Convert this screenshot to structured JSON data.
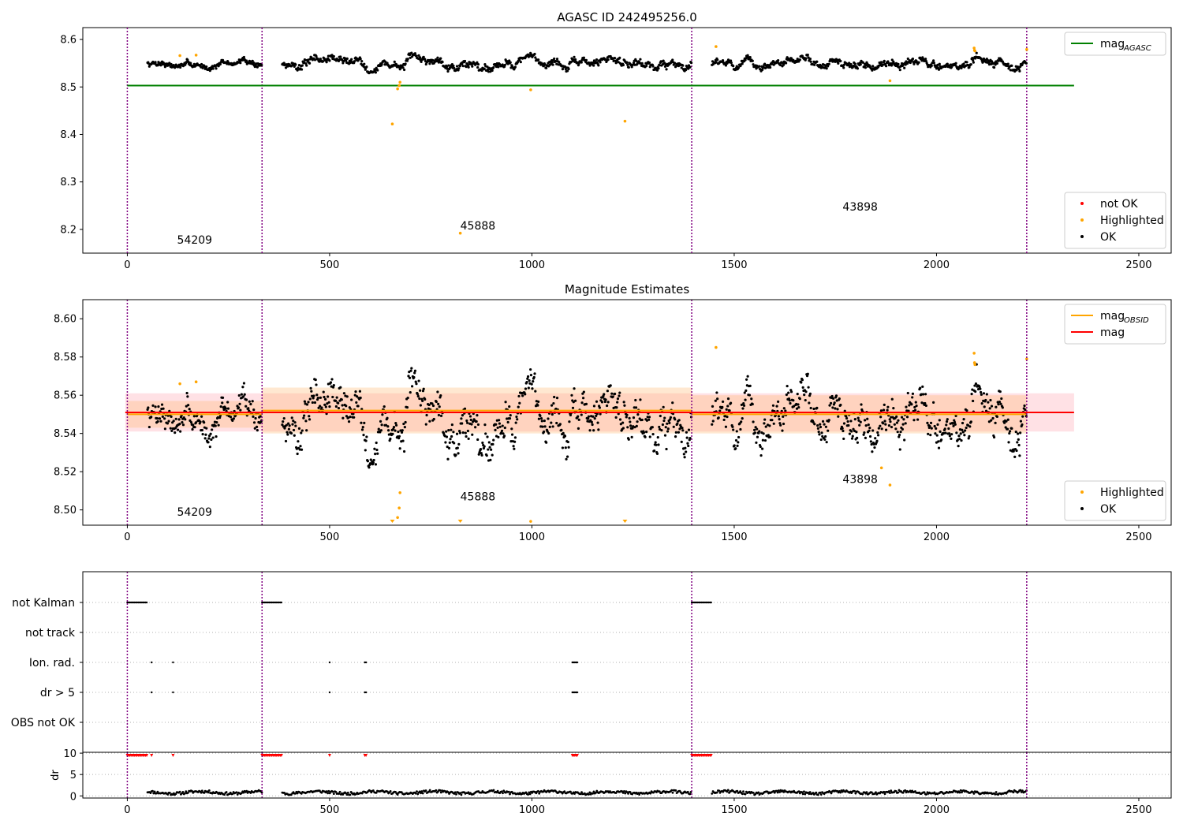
{
  "figure": {
    "title_top": "AGASC ID 242495256.0",
    "title_mid": "Magnitude Estimates"
  },
  "chart_data": [
    {
      "type": "scatter",
      "title": "AGASC ID 242495256.0",
      "xlabel": "",
      "ylabel": "",
      "xlim": [
        -110,
        2580
      ],
      "ylim": [
        8.15,
        8.625
      ],
      "xticks": [
        0,
        500,
        1000,
        1500,
        2000,
        2500
      ],
      "yticks": [
        8.2,
        8.3,
        8.4,
        8.5,
        8.6
      ],
      "grid": false,
      "legend": {
        "upper": {
          "placement": "upper right",
          "entries": [
            {
              "label": "mag",
              "subscript": "AGASC",
              "color": "#008000",
              "kind": "line"
            }
          ]
        },
        "lower": {
          "placement": "lower right",
          "entries": [
            {
              "label": "not OK",
              "color": "#ff0000",
              "kind": "marker"
            },
            {
              "label": "Highlighted",
              "color": "#ffa500",
              "kind": "marker"
            },
            {
              "label": "OK",
              "color": "#000000",
              "kind": "marker"
            }
          ]
        }
      },
      "reference_lines": [
        {
          "name": "mag_AGASC",
          "y": 8.503,
          "x_range": [
            0,
            2340
          ],
          "color": "#008000"
        }
      ],
      "observation_boundaries": [
        0,
        333,
        1395,
        2223
      ],
      "observation_labels": [
        {
          "text": "54209",
          "x": 123,
          "y": 8.17
        },
        {
          "text": "45888",
          "x": 823,
          "y": 8.2
        },
        {
          "text": "43898",
          "x": 1768,
          "y": 8.24
        }
      ],
      "segments": [
        {
          "x_range": [
            50,
            333
          ],
          "mean": 8.548,
          "spread": 0.012
        },
        {
          "x_range": [
            383,
            1395
          ],
          "mean": 8.552,
          "spread": 0.018
        },
        {
          "x_range": [
            1445,
            2223
          ],
          "mean": 8.549,
          "spread": 0.016
        }
      ],
      "highlighted_points": [
        {
          "x": 130,
          "y": 8.566
        },
        {
          "x": 170,
          "y": 8.567
        },
        {
          "x": 655,
          "y": 8.422
        },
        {
          "x": 668,
          "y": 8.496
        },
        {
          "x": 672,
          "y": 8.503
        },
        {
          "x": 674,
          "y": 8.51
        },
        {
          "x": 823,
          "y": 8.192
        },
        {
          "x": 997,
          "y": 8.494
        },
        {
          "x": 1230,
          "y": 8.428
        },
        {
          "x": 1455,
          "y": 8.585
        },
        {
          "x": 1885,
          "y": 8.513
        },
        {
          "x": 2093,
          "y": 8.582
        },
        {
          "x": 2094,
          "y": 8.577
        },
        {
          "x": 2095,
          "y": 8.576
        },
        {
          "x": 2223,
          "y": 8.579
        }
      ]
    },
    {
      "type": "scatter",
      "title": "Magnitude Estimates",
      "xlabel": "",
      "ylabel": "",
      "xlim": [
        -110,
        2580
      ],
      "ylim": [
        8.492,
        8.61
      ],
      "xticks": [
        0,
        500,
        1000,
        1500,
        2000,
        2500
      ],
      "yticks": [
        8.5,
        8.52,
        8.54,
        8.56,
        8.58,
        8.6
      ],
      "grid": false,
      "legend": {
        "upper": {
          "placement": "upper right",
          "entries": [
            {
              "label": "mag",
              "subscript": "OBSID",
              "color": "#ffa500",
              "kind": "line"
            },
            {
              "label": "mag",
              "subscript": "",
              "color": "#ff0000",
              "kind": "line"
            }
          ]
        },
        "lower": {
          "placement": "lower right",
          "entries": [
            {
              "label": "Highlighted",
              "color": "#ffa500",
              "kind": "marker"
            },
            {
              "label": "OK",
              "color": "#000000",
              "kind": "marker"
            }
          ]
        }
      },
      "mag": {
        "y": 8.551,
        "band": [
          8.541,
          8.561
        ],
        "x_range": [
          -5,
          2340
        ],
        "color": "#ff0000"
      },
      "mag_obsid": [
        {
          "x_range": [
            0,
            333
          ],
          "y": 8.55,
          "band": [
            8.543,
            8.557
          ]
        },
        {
          "x_range": [
            333,
            1395
          ],
          "y": 8.552,
          "band": [
            8.54,
            8.564
          ]
        },
        {
          "x_range": [
            1395,
            2223
          ],
          "y": 8.55,
          "band": [
            8.54,
            8.56
          ]
        }
      ],
      "observation_boundaries": [
        0,
        333,
        1395,
        2223
      ],
      "observation_labels": [
        {
          "text": "54209",
          "x": 123,
          "y": 8.497
        },
        {
          "text": "45888",
          "x": 823,
          "y": 8.505
        },
        {
          "text": "43898",
          "x": 1768,
          "y": 8.514
        }
      ],
      "highlighted_points": [
        {
          "x": 130,
          "y": 8.566
        },
        {
          "x": 170,
          "y": 8.567
        },
        {
          "x": 668,
          "y": 8.496
        },
        {
          "x": 672,
          "y": 8.501
        },
        {
          "x": 674,
          "y": 8.509
        },
        {
          "x": 997,
          "y": 8.494
        },
        {
          "x": 1455,
          "y": 8.585
        },
        {
          "x": 1864,
          "y": 8.522
        },
        {
          "x": 1885,
          "y": 8.513
        },
        {
          "x": 2093,
          "y": 8.582
        },
        {
          "x": 2094,
          "y": 8.577
        },
        {
          "x": 2095,
          "y": 8.576
        },
        {
          "x": 2223,
          "y": 8.579
        }
      ],
      "clipped_markers": [
        {
          "x": 655
        },
        {
          "x": 823
        },
        {
          "x": 1230
        }
      ]
    },
    {
      "type": "scatter",
      "title": "",
      "xlabel": "",
      "ylabel": "",
      "xlim": [
        -110,
        2580
      ],
      "flag_rows": [
        "not Kalman",
        "not track",
        "Ion. rad.",
        "dr > 5",
        "OBS not OK"
      ],
      "observation_boundaries": [
        0,
        333,
        1395,
        2223
      ],
      "flags": {
        "not Kalman": [
          [
            0,
            50
          ],
          [
            333,
            383
          ],
          [
            1395,
            1445
          ]
        ],
        "not track": [],
        "Ion. rad.": [
          [
            60,
            60
          ],
          [
            113,
            113
          ],
          [
            500,
            500
          ],
          [
            587,
            592
          ],
          [
            1100,
            1112
          ]
        ],
        "dr > 5": [
          [
            60,
            60
          ],
          [
            113,
            113
          ],
          [
            500,
            500
          ],
          [
            587,
            592
          ],
          [
            1100,
            1112
          ]
        ],
        "OBS not OK": []
      }
    },
    {
      "type": "scatter",
      "title": "",
      "xlabel": "",
      "ylabel": "dr",
      "xlim": [
        -110,
        2580
      ],
      "ylim": [
        -0.5,
        10.2
      ],
      "yticks": [
        0,
        5,
        10
      ],
      "grid": true,
      "observation_boundaries": [
        0,
        333,
        1395,
        2223
      ],
      "clipped_red": [
        [
          0,
          50
        ],
        [
          60,
          60
        ],
        [
          113,
          113
        ],
        [
          333,
          383
        ],
        [
          500,
          500
        ],
        [
          587,
          592
        ],
        [
          1100,
          1112
        ],
        [
          1395,
          1445
        ]
      ],
      "typical_dr": 0.8
    }
  ]
}
